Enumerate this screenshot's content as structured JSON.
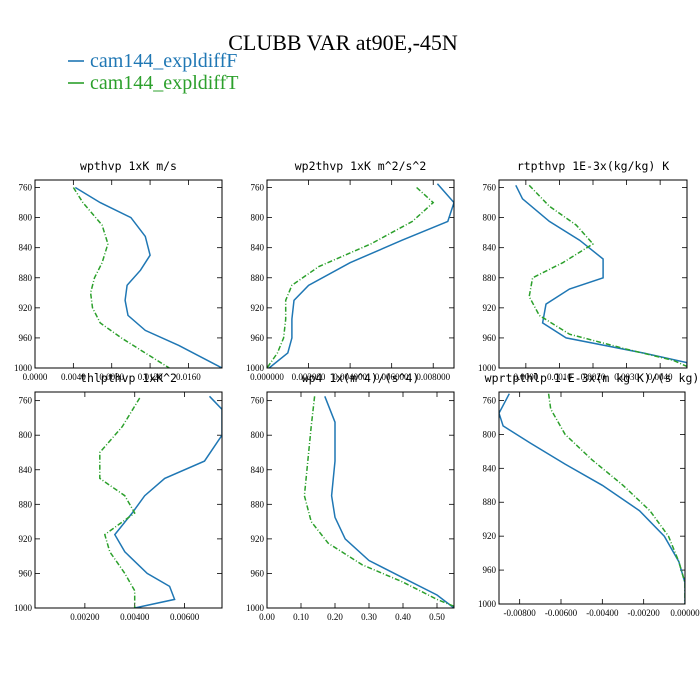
{
  "title": "CLUBB VAR at90E,-45N",
  "legend": [
    {
      "label": "cam144_expldiffF",
      "color": "#1f77b4"
    },
    {
      "label": "cam144_expldiffT",
      "color": "#2ca02c"
    }
  ],
  "chart_data": [
    {
      "type": "line",
      "title": "wpthvp  1xK m/s",
      "xlim": [
        0.0,
        0.0195
      ],
      "ylim": [
        1000,
        750
      ],
      "xticks": [
        {
          "value": 0.0,
          "label": "0.0000"
        },
        {
          "value": 0.004,
          "label": "0.0040"
        },
        {
          "value": 0.008,
          "label": "0.0080"
        },
        {
          "value": 0.012,
          "label": "0.0120"
        },
        {
          "value": 0.016,
          "label": "0.0160"
        }
      ],
      "yticks": [
        760,
        800,
        840,
        880,
        920,
        960,
        1000
      ],
      "series": [
        {
          "name": "cam144_expldiffF",
          "color": "#1f77b4",
          "dashed": false,
          "points": [
            [
              0.0042,
              760
            ],
            [
              0.0068,
              780
            ],
            [
              0.01,
              800
            ],
            [
              0.0115,
              825
            ],
            [
              0.012,
              850
            ],
            [
              0.011,
              870
            ],
            [
              0.0096,
              890
            ],
            [
              0.0094,
              910
            ],
            [
              0.0097,
              930
            ],
            [
              0.0115,
              950
            ],
            [
              0.015,
              970
            ],
            [
              0.0195,
              1000
            ]
          ]
        },
        {
          "name": "cam144_expldiffT",
          "color": "#2ca02c",
          "dashed": true,
          "points": [
            [
              0.004,
              760
            ],
            [
              0.005,
              780
            ],
            [
              0.007,
              810
            ],
            [
              0.0076,
              835
            ],
            [
              0.007,
              860
            ],
            [
              0.0062,
              880
            ],
            [
              0.0058,
              900
            ],
            [
              0.006,
              920
            ],
            [
              0.0068,
              940
            ],
            [
              0.009,
              960
            ],
            [
              0.0115,
              980
            ],
            [
              0.014,
              1000
            ]
          ]
        }
      ]
    },
    {
      "type": "line",
      "title": "wp2thvp  1xK m^2/s^2",
      "xlim": [
        0.0,
        0.009
      ],
      "ylim": [
        1000,
        750
      ],
      "xticks": [
        {
          "value": 0.0,
          "label": "0.000000"
        },
        {
          "value": 0.002,
          "label": "0.002000"
        },
        {
          "value": 0.004,
          "label": "0.004000"
        },
        {
          "value": 0.006,
          "label": "0.006000"
        },
        {
          "value": 0.008,
          "label": "0.008000"
        }
      ],
      "yticks": [
        760,
        800,
        840,
        880,
        920,
        960,
        1000
      ],
      "series": [
        {
          "name": "cam144_expldiffF",
          "color": "#1f77b4",
          "dashed": false,
          "points": [
            [
              0.0082,
              755
            ],
            [
              0.009,
              780
            ],
            [
              0.0087,
              805
            ],
            [
              0.0065,
              830
            ],
            [
              0.004,
              860
            ],
            [
              0.002,
              890
            ],
            [
              0.0013,
              910
            ],
            [
              0.0012,
              935
            ],
            [
              0.0012,
              960
            ],
            [
              0.001,
              980
            ],
            [
              0.0001,
              1000
            ]
          ]
        },
        {
          "name": "cam144_expldiffT",
          "color": "#2ca02c",
          "dashed": true,
          "points": [
            [
              0.0072,
              760
            ],
            [
              0.008,
              780
            ],
            [
              0.007,
              805
            ],
            [
              0.005,
              835
            ],
            [
              0.0025,
              865
            ],
            [
              0.0012,
              890
            ],
            [
              0.0009,
              910
            ],
            [
              0.0009,
              935
            ],
            [
              0.0008,
              960
            ],
            [
              0.0005,
              980
            ],
            [
              0.0,
              1000
            ]
          ]
        }
      ]
    },
    {
      "type": "line",
      "title": "rtpthvp  1E-3x(kg/kg) K",
      "xlim": [
        -0.0008,
        0.0048
      ],
      "ylim": [
        1000,
        750
      ],
      "xticks": [
        {
          "value": 0.0,
          "label": "0.0000"
        },
        {
          "value": 0.001,
          "label": "0.0010"
        },
        {
          "value": 0.002,
          "label": "0.0020"
        },
        {
          "value": 0.003,
          "label": "0.0030"
        },
        {
          "value": 0.004,
          "label": "0.0040"
        }
      ],
      "yticks": [
        760,
        800,
        840,
        880,
        920,
        960,
        1000
      ],
      "series": [
        {
          "name": "cam144_expldiffF",
          "color": "#1f77b4",
          "dashed": false,
          "points": [
            [
              -0.0003,
              757
            ],
            [
              -0.0001,
              775
            ],
            [
              0.0007,
              805
            ],
            [
              0.0016,
              830
            ],
            [
              0.0023,
              855
            ],
            [
              0.0023,
              880
            ],
            [
              0.0013,
              895
            ],
            [
              0.0006,
              915
            ],
            [
              0.0005,
              940
            ],
            [
              0.0012,
              960
            ],
            [
              0.0035,
              980
            ],
            [
              0.0048,
              993
            ],
            [
              0.0048,
              1000
            ]
          ]
        },
        {
          "name": "cam144_expldiffT",
          "color": "#2ca02c",
          "dashed": true,
          "points": [
            [
              0.0001,
              757
            ],
            [
              0.0007,
              785
            ],
            [
              0.0015,
              810
            ],
            [
              0.002,
              835
            ],
            [
              0.0011,
              860
            ],
            [
              0.0002,
              880
            ],
            [
              0.0001,
              905
            ],
            [
              0.0004,
              930
            ],
            [
              0.0013,
              955
            ],
            [
              0.003,
              975
            ],
            [
              0.0044,
              990
            ],
            [
              0.0048,
              998
            ]
          ]
        }
      ]
    },
    {
      "type": "line",
      "title": "thlpthvp  1xK^2",
      "xlim": [
        0.0,
        0.0075
      ],
      "ylim": [
        1000,
        750
      ],
      "xticks": [
        {
          "value": 0.002,
          "label": "0.00200"
        },
        {
          "value": 0.004,
          "label": "0.00400"
        },
        {
          "value": 0.006,
          "label": "0.00600"
        }
      ],
      "yticks": [
        760,
        800,
        840,
        880,
        920,
        960,
        1000
      ],
      "series": [
        {
          "name": "cam144_expldiffF",
          "color": "#1f77b4",
          "dashed": false,
          "points": [
            [
              0.007,
              755
            ],
            [
              0.0075,
              770
            ],
            [
              0.0075,
              800
            ],
            [
              0.0068,
              830
            ],
            [
              0.0052,
              850
            ],
            [
              0.0044,
              870
            ],
            [
              0.0039,
              890
            ],
            [
              0.0032,
              915
            ],
            [
              0.0036,
              935
            ],
            [
              0.0045,
              960
            ],
            [
              0.0054,
              975
            ],
            [
              0.0056,
              990
            ],
            [
              0.004,
              1000
            ]
          ]
        },
        {
          "name": "cam144_expldiffT",
          "color": "#2ca02c",
          "dashed": true,
          "points": [
            [
              0.0042,
              757
            ],
            [
              0.0035,
              790
            ],
            [
              0.0026,
              820
            ],
            [
              0.0026,
              850
            ],
            [
              0.0036,
              870
            ],
            [
              0.004,
              890
            ],
            [
              0.0028,
              915
            ],
            [
              0.003,
              935
            ],
            [
              0.0036,
              960
            ],
            [
              0.004,
              980
            ],
            [
              0.004,
              1000
            ]
          ]
        }
      ]
    },
    {
      "type": "line",
      "title": "wp4  1x(m^4)/(s^4)",
      "xlim": [
        0.0,
        0.55
      ],
      "ylim": [
        1000,
        750
      ],
      "xticks": [
        {
          "value": 0.0,
          "label": "0.00"
        },
        {
          "value": 0.1,
          "label": "0.10"
        },
        {
          "value": 0.2,
          "label": "0.20"
        },
        {
          "value": 0.3,
          "label": "0.30"
        },
        {
          "value": 0.4,
          "label": "0.40"
        },
        {
          "value": 0.5,
          "label": "0.50"
        }
      ],
      "yticks": [
        760,
        800,
        840,
        880,
        920,
        960,
        1000
      ],
      "series": [
        {
          "name": "cam144_expldiffF",
          "color": "#1f77b4",
          "dashed": false,
          "points": [
            [
              0.17,
              755
            ],
            [
              0.2,
              785
            ],
            [
              0.2,
              830
            ],
            [
              0.19,
              870
            ],
            [
              0.2,
              895
            ],
            [
              0.23,
              920
            ],
            [
              0.3,
              945
            ],
            [
              0.4,
              965
            ],
            [
              0.5,
              985
            ],
            [
              0.55,
              1000
            ]
          ]
        },
        {
          "name": "cam144_expldiffT",
          "color": "#2ca02c",
          "dashed": true,
          "points": [
            [
              0.14,
              755
            ],
            [
              0.13,
              790
            ],
            [
              0.12,
              830
            ],
            [
              0.11,
              870
            ],
            [
              0.13,
              900
            ],
            [
              0.18,
              925
            ],
            [
              0.28,
              950
            ],
            [
              0.4,
              970
            ],
            [
              0.5,
              990
            ],
            [
              0.55,
              998
            ]
          ]
        }
      ]
    },
    {
      "type": "line",
      "title": "wprtpthlp  1-E-3x(m kg K)/(s kg)",
      "xlim": [
        -0.009,
        0.0
      ],
      "ylim": [
        1000,
        750
      ],
      "xticks": [
        {
          "value": -0.008,
          "label": "-0.00800"
        },
        {
          "value": -0.006,
          "label": "-0.00600"
        },
        {
          "value": -0.004,
          "label": "-0.00400"
        },
        {
          "value": -0.002,
          "label": "-0.00200"
        },
        {
          "value": 0.0,
          "label": "0.00000"
        }
      ],
      "yticks": [
        760,
        800,
        840,
        880,
        920,
        960,
        1000
      ],
      "series": [
        {
          "name": "cam144_expldiffF",
          "color": "#1f77b4",
          "dashed": false,
          "points": [
            [
              -0.0085,
              752
            ],
            [
              -0.009,
              775
            ],
            [
              -0.0088,
              790
            ],
            [
              -0.0075,
              810
            ],
            [
              -0.0058,
              835
            ],
            [
              -0.004,
              860
            ],
            [
              -0.0022,
              890
            ],
            [
              -0.001,
              920
            ],
            [
              -0.0003,
              950
            ],
            [
              0.0,
              975
            ],
            [
              0.0,
              1000
            ]
          ]
        },
        {
          "name": "cam144_expldiffT",
          "color": "#2ca02c",
          "dashed": true,
          "points": [
            [
              -0.0066,
              752
            ],
            [
              -0.0065,
              770
            ],
            [
              -0.0058,
              800
            ],
            [
              -0.0045,
              830
            ],
            [
              -0.003,
              860
            ],
            [
              -0.0017,
              890
            ],
            [
              -0.0008,
              920
            ],
            [
              -0.0003,
              950
            ],
            [
              0.0,
              975
            ],
            [
              0.0,
              1000
            ]
          ]
        }
      ]
    }
  ]
}
